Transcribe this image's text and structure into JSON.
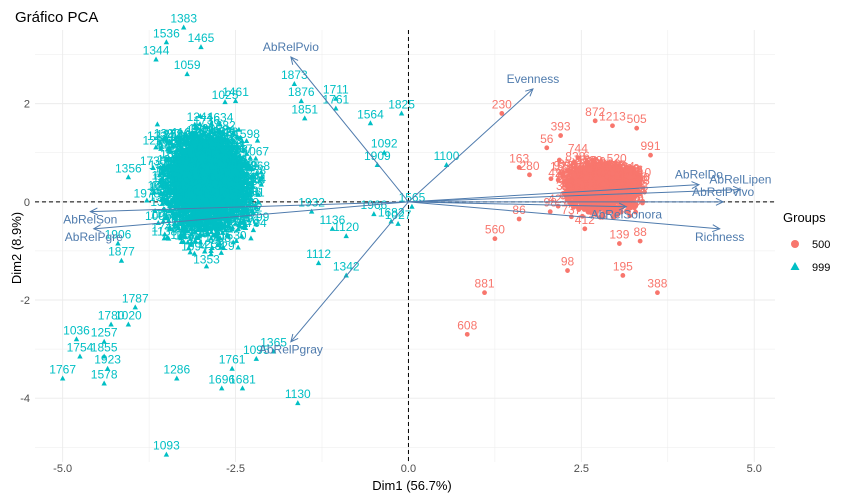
{
  "chart_data": {
    "type": "scatter",
    "title": "Gráfico PCA",
    "xlabel": "Dim1 (56.7%)",
    "ylabel": "Dim2 (8.9%)",
    "xlim": [
      -5.4,
      5.3
    ],
    "ylim": [
      -5.3,
      3.5
    ],
    "xticks": [
      "-5.0",
      "-2.5",
      "0.0",
      "2.5",
      "5.0"
    ],
    "xtick_values": [
      -5.0,
      -2.5,
      0.0,
      2.5,
      5.0
    ],
    "yticks": [
      "2",
      "0",
      "-2",
      "-4"
    ],
    "ytick_values": [
      2,
      0,
      -2,
      -4
    ],
    "grid": true,
    "reference_lines": {
      "x": 0,
      "y": 0,
      "style": "dashed"
    },
    "colors": {
      "group_500": "#f8766d",
      "group_999": "#00bfc4",
      "arrow": "#4f7bad"
    },
    "legend": {
      "title": "Groups",
      "placement": "right",
      "entries": [
        {
          "label": "500",
          "color": "#f8766d",
          "marker": "circle"
        },
        {
          "label": "999",
          "color": "#00bfc4",
          "marker": "triangle"
        }
      ]
    },
    "series": [
      {
        "name": "500",
        "marker": "circle",
        "color": "#f8766d",
        "cluster": {
          "center": [
            2.8,
            0.25
          ],
          "spread": [
            0.6,
            0.55
          ]
        },
        "points": [
          {
            "x": 0.85,
            "y": -2.7,
            "label": "608"
          },
          {
            "x": 1.35,
            "y": 1.8,
            "label": "230"
          },
          {
            "x": 1.1,
            "y": -1.85,
            "label": "881"
          },
          {
            "x": 1.25,
            "y": -0.75,
            "label": "560"
          },
          {
            "x": 1.6,
            "y": -0.35,
            "label": "86"
          },
          {
            "x": 3.6,
            "y": -1.85,
            "label": "388"
          },
          {
            "x": 3.1,
            "y": -1.5,
            "label": "195"
          },
          {
            "x": 2.3,
            "y": -1.4,
            "label": "98"
          },
          {
            "x": 2.05,
            "y": -0.2,
            "label": "98"
          },
          {
            "x": 2.0,
            "y": 1.1,
            "label": "56"
          },
          {
            "x": 1.6,
            "y": 0.7,
            "label": "163"
          },
          {
            "x": 1.75,
            "y": 0.55,
            "label": "280"
          },
          {
            "x": 2.2,
            "y": 1.35,
            "label": "393"
          },
          {
            "x": 2.7,
            "y": 1.65,
            "label": "872"
          },
          {
            "x": 2.95,
            "y": 1.55,
            "label": "1213"
          },
          {
            "x": 3.3,
            "y": 1.5,
            "label": "505"
          },
          {
            "x": 3.5,
            "y": 0.95,
            "label": "991"
          },
          {
            "x": 3.2,
            "y": 0.5,
            "label": "799"
          },
          {
            "x": 2.45,
            "y": 0.9,
            "label": "744"
          },
          {
            "x": 2.95,
            "y": 0.2,
            "label": "137"
          },
          {
            "x": 2.55,
            "y": -0.55,
            "label": "412"
          },
          {
            "x": 3.05,
            "y": -0.85,
            "label": "139"
          },
          {
            "x": 3.35,
            "y": -0.8,
            "label": "88"
          }
        ]
      },
      {
        "name": "999",
        "marker": "triangle",
        "color": "#00bfc4",
        "cluster": {
          "center": [
            -2.9,
            0.3
          ],
          "spread": [
            0.75,
            1.3
          ]
        },
        "points": [
          {
            "x": -3.5,
            "y": -5.15,
            "label": "1093"
          },
          {
            "x": -1.6,
            "y": -4.1,
            "label": "1130"
          },
          {
            "x": -5.0,
            "y": -3.6,
            "label": "1767"
          },
          {
            "x": -4.35,
            "y": -3.4,
            "label": "1923"
          },
          {
            "x": -4.4,
            "y": -3.7,
            "label": "1578"
          },
          {
            "x": -4.8,
            "y": -2.8,
            "label": "1036"
          },
          {
            "x": -4.75,
            "y": -3.15,
            "label": "1754"
          },
          {
            "x": -4.4,
            "y": -3.15,
            "label": "1855"
          },
          {
            "x": -4.4,
            "y": -2.85,
            "label": "1257"
          },
          {
            "x": -4.3,
            "y": -2.5,
            "label": "1780"
          },
          {
            "x": -4.05,
            "y": -2.5,
            "label": "1020"
          },
          {
            "x": -3.95,
            "y": -2.15,
            "label": "1787"
          },
          {
            "x": -3.35,
            "y": -3.6,
            "label": "1286"
          },
          {
            "x": -2.7,
            "y": -3.8,
            "label": "1696"
          },
          {
            "x": -2.4,
            "y": -3.8,
            "label": "1681"
          },
          {
            "x": -2.55,
            "y": -3.4,
            "label": "1761"
          },
          {
            "x": -2.2,
            "y": -3.2,
            "label": "1095"
          },
          {
            "x": -1.95,
            "y": -3.05,
            "label": "1365"
          },
          {
            "x": -0.9,
            "y": -1.5,
            "label": "1342"
          },
          {
            "x": -1.3,
            "y": -1.25,
            "label": "1112"
          },
          {
            "x": -0.9,
            "y": -0.7,
            "label": "1120"
          },
          {
            "x": -1.1,
            "y": -0.55,
            "label": "1136"
          },
          {
            "x": -1.4,
            "y": -0.2,
            "label": "1932"
          },
          {
            "x": -0.5,
            "y": -0.25,
            "label": "1966"
          },
          {
            "x": -0.15,
            "y": -0.45,
            "label": "1027"
          },
          {
            "x": -0.25,
            "y": -0.4,
            "label": "1682"
          },
          {
            "x": 0.05,
            "y": -0.1,
            "label": "1565"
          },
          {
            "x": 0.55,
            "y": 0.75,
            "label": "1100"
          },
          {
            "x": -0.1,
            "y": 1.8,
            "label": "1825"
          },
          {
            "x": -0.55,
            "y": 1.6,
            "label": "1564"
          },
          {
            "x": -1.05,
            "y": 2.1,
            "label": "1711"
          },
          {
            "x": -1.05,
            "y": 1.9,
            "label": "1761"
          },
          {
            "x": -1.65,
            "y": 2.4,
            "label": "1873"
          },
          {
            "x": -1.55,
            "y": 2.05,
            "label": "1876"
          },
          {
            "x": -1.5,
            "y": 1.7,
            "label": "1851"
          },
          {
            "x": -2.5,
            "y": 2.05,
            "label": "1461"
          },
          {
            "x": -3.25,
            "y": 3.55,
            "label": "1383"
          },
          {
            "x": -3.5,
            "y": 3.25,
            "label": "1536"
          },
          {
            "x": -3.0,
            "y": 3.15,
            "label": "1465"
          },
          {
            "x": -3.65,
            "y": 2.9,
            "label": "1344"
          },
          {
            "x": -3.2,
            "y": 2.6,
            "label": "1059"
          },
          {
            "x": -4.05,
            "y": 0.5,
            "label": "1356"
          },
          {
            "x": -4.2,
            "y": -0.85,
            "label": "1906"
          },
          {
            "x": -4.15,
            "y": -1.2,
            "label": "1877"
          },
          {
            "x": -0.35,
            "y": 1.0,
            "label": "1092"
          },
          {
            "x": -0.45,
            "y": 0.75,
            "label": "1909"
          }
        ]
      }
    ],
    "variables": [
      {
        "name": "AbRelPvio",
        "x": -1.7,
        "y": 2.95
      },
      {
        "name": "Evenness",
        "x": 1.8,
        "y": 2.3
      },
      {
        "name": "AbRelPgray",
        "x": -1.7,
        "y": -2.85
      },
      {
        "name": "AbRelPgre",
        "x": -4.55,
        "y": -0.55
      },
      {
        "name": "AbRelSon",
        "x": -4.6,
        "y": -0.2
      },
      {
        "name": "Richness",
        "x": 4.5,
        "y": -0.55
      },
      {
        "name": "AbRelSonora",
        "x": 3.15,
        "y": -0.1
      },
      {
        "name": "AbRelLipen",
        "x": 4.8,
        "y": 0.25
      },
      {
        "name": "AbRelPvivo",
        "x": 4.55,
        "y": 0.0
      },
      {
        "name": "AbRelDo",
        "x": 4.2,
        "y": 0.35
      }
    ]
  }
}
